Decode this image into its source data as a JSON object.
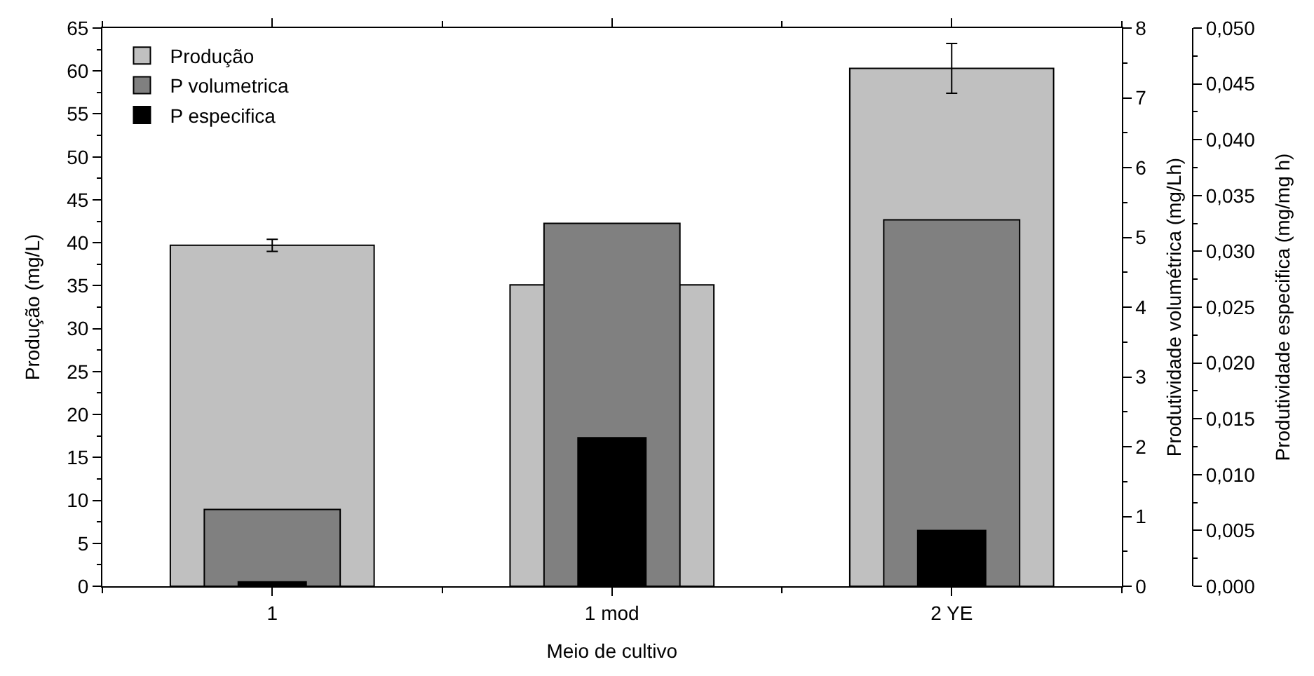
{
  "chart_data": {
    "type": "bar",
    "xlabel": "Meio de cultivo",
    "ylabel": "Produção (mg/L)",
    "y2label": "Produtividade volumétrica (mg/Lh)",
    "y3label": "Produtividade especifica (mg/mg h)",
    "categories": [
      "1",
      "1 mod",
      "2 YE"
    ],
    "series": [
      {
        "name": "Produção",
        "color": "#c0c0c0",
        "values": [
          39.7,
          35.1,
          60.3
        ],
        "errors": [
          0.7,
          null,
          2.9
        ]
      },
      {
        "name": "P volumetrica",
        "color": "#808080",
        "values": [
          1.1,
          5.2,
          5.25
        ],
        "axis": "y2"
      },
      {
        "name": "P especifica",
        "color": "#000000",
        "values": [
          0.0004,
          0.0133,
          0.005
        ],
        "axis": "y3"
      }
    ],
    "ylim": [
      0,
      65
    ],
    "yticks": [
      0,
      5,
      10,
      15,
      20,
      25,
      30,
      35,
      40,
      45,
      50,
      55,
      60,
      65
    ],
    "y2lim": [
      0,
      8
    ],
    "y2ticks": [
      0,
      1,
      2,
      3,
      4,
      5,
      6,
      7,
      8
    ],
    "y3lim": [
      0,
      0.05
    ],
    "y3ticks": [
      {
        "value": 0,
        "label": "0,000"
      },
      {
        "value": 0.005,
        "label": "0,005"
      },
      {
        "value": 0.01,
        "label": "0,010"
      },
      {
        "value": 0.015,
        "label": "0,015"
      },
      {
        "value": 0.02,
        "label": "0,020"
      },
      {
        "value": 0.025,
        "label": "0,025"
      },
      {
        "value": 0.03,
        "label": "0,030"
      },
      {
        "value": 0.035,
        "label": "0,035"
      },
      {
        "value": 0.04,
        "label": "0,040"
      },
      {
        "value": 0.045,
        "label": "0,045"
      },
      {
        "value": 0.05,
        "label": "0,050"
      }
    ],
    "legend": "top left"
  }
}
